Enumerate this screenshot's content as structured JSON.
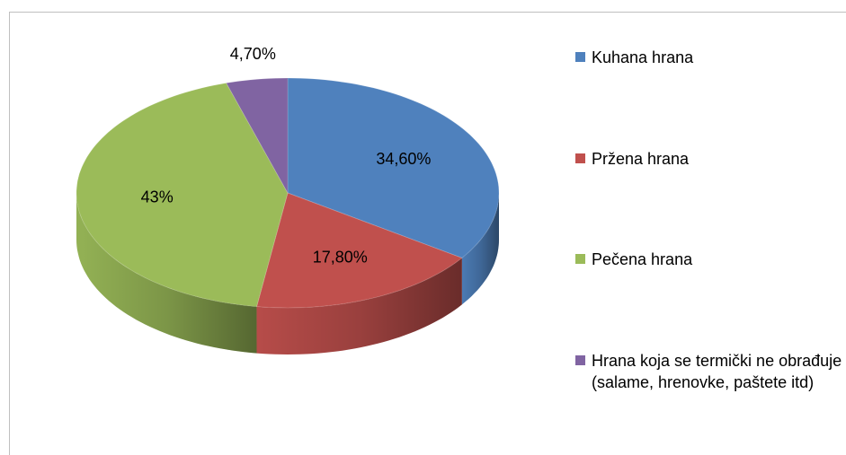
{
  "chart_data": {
    "type": "pie",
    "categories": [
      "Kuhana hrana",
      "Pržena hrana",
      "Pečena hrana",
      "Hrana koja se termički ne obrađuje (salame, hrenovke, paštete itd)"
    ],
    "values": [
      34.6,
      17.8,
      43,
      4.7
    ],
    "value_labels": [
      "34,60%",
      "17,80%",
      "43%",
      "4,70%"
    ],
    "colors": [
      "#4f81bd",
      "#c0504d",
      "#9bbb59",
      "#8064a2"
    ],
    "legend": "right"
  }
}
